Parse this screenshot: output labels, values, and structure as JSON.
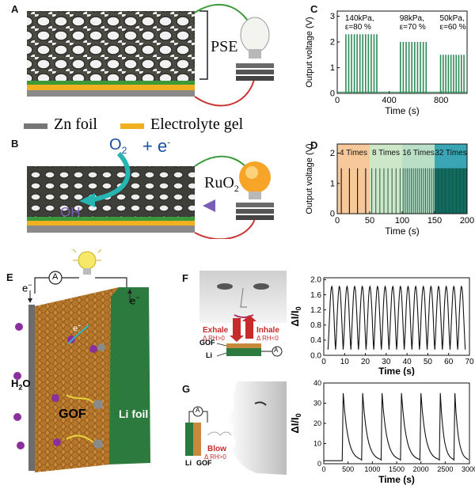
{
  "panel_labels": {
    "A": "A",
    "B": "B",
    "C": "C",
    "D": "D",
    "E": "E",
    "F": "F",
    "G": "G"
  },
  "panel_a": {
    "pse_label": "PSE"
  },
  "legend": {
    "zn_foil": "Zn foil",
    "electrolyte_gel": "Electrolyte gel"
  },
  "panel_b": {
    "o2": "O",
    "o2_sub": "2",
    "plus_e": "+ e",
    "e_sup": "-",
    "ruo2": "RuO",
    "ruo2_sub": "2",
    "oh": "OH",
    "oh_sup": "-"
  },
  "panel_e": {
    "a_symbol": "A",
    "e_minus_1": "e",
    "e_minus_2": "e",
    "e_minus_3": "e",
    "e_sup": "−",
    "h2o": "H",
    "h2o_sub": "2",
    "h2o_end": "O",
    "gof": "GOF",
    "li_foil": "Li foil"
  },
  "panel_f": {
    "exhale": "Exhale",
    "exhale_rh": "Δ RH>0",
    "inhale": "Inhale",
    "inhale_rh": "Δ RH<0",
    "gof": "GOF",
    "li": "Li",
    "a_symbol": "A"
  },
  "panel_g": {
    "a_symbol": "A",
    "blow": "Blow",
    "blow_rh": "Δ RH>0",
    "li": "Li",
    "gof": "GOF"
  },
  "chart_data": [
    {
      "id": "C",
      "type": "line",
      "xlabel": "Time (s)",
      "ylabel": "Output voltage  (V)",
      "xlim": [
        0,
        1000
      ],
      "ylim": [
        0,
        3.2
      ],
      "xticks": [
        0,
        400,
        800
      ],
      "yticks": [
        0,
        1,
        2,
        3
      ],
      "color": "#2e8b57",
      "bursts": [
        {
          "label": "140kPa,",
          "label2": "ε=80 %",
          "start": 60,
          "end": 320,
          "count": 12,
          "peak": 2.3
        },
        {
          "label": "98kPa,",
          "label2": "ε=70 %",
          "start": 480,
          "end": 700,
          "count": 10,
          "peak": 2.0
        },
        {
          "label": "50kPa,",
          "label2": "ε=60 %",
          "start": 790,
          "end": 990,
          "count": 10,
          "peak": 1.5
        }
      ]
    },
    {
      "id": "D",
      "type": "line",
      "xlabel": "Time (s)",
      "ylabel": "Output voltage  (V)",
      "xlim": [
        0,
        200
      ],
      "ylim": [
        0,
        2.3
      ],
      "xticks": [
        0,
        50,
        100,
        150,
        200
      ],
      "yticks": [
        0,
        1,
        2
      ],
      "regions": [
        {
          "label": "4 Times",
          "start": 0,
          "end": 50,
          "color": "#f7c99a",
          "pulses": 4,
          "line": "#111"
        },
        {
          "label": "8 Times",
          "start": 50,
          "end": 100,
          "color": "#cde7c8",
          "pulses": 8,
          "line": "#3c6b55"
        },
        {
          "label": "16 Times",
          "start": 100,
          "end": 150,
          "color": "#b9dfc7",
          "pulses": 16,
          "line": "#3c6b55"
        },
        {
          "label": "32 Times",
          "start": 150,
          "end": 200,
          "color": "#3aa6b5",
          "pulses": 32,
          "line": "#0b5a4a"
        }
      ],
      "peak": 1.5
    },
    {
      "id": "F",
      "type": "line",
      "xlabel": "Time (s)",
      "ylabel": "ΔI/I",
      "ylabel_sub": "0",
      "xlim": [
        0,
        70
      ],
      "ylim": [
        0,
        2.05
      ],
      "xticks": [
        0,
        10,
        20,
        30,
        40,
        50,
        60,
        70
      ],
      "yticks": [
        0.0,
        0.4,
        0.8,
        1.2,
        1.6,
        2.0
      ],
      "cycles": 18,
      "start": 2,
      "end": 68,
      "low": 0.15,
      "high": 1.82
    },
    {
      "id": "G",
      "type": "line",
      "xlabel": "Time (s)",
      "ylabel": "ΔI/I",
      "ylabel_sub": "0",
      "xlim": [
        0,
        3000
      ],
      "ylim": [
        0,
        40
      ],
      "xticks": [
        0,
        500,
        1000,
        1500,
        2000,
        2500,
        3000
      ],
      "yticks": [
        0,
        10,
        20,
        30,
        40
      ],
      "peaks": [
        400,
        800,
        1200,
        1600,
        2000,
        2400,
        2700
      ],
      "peak": 35,
      "baseline": 1.5
    }
  ]
}
